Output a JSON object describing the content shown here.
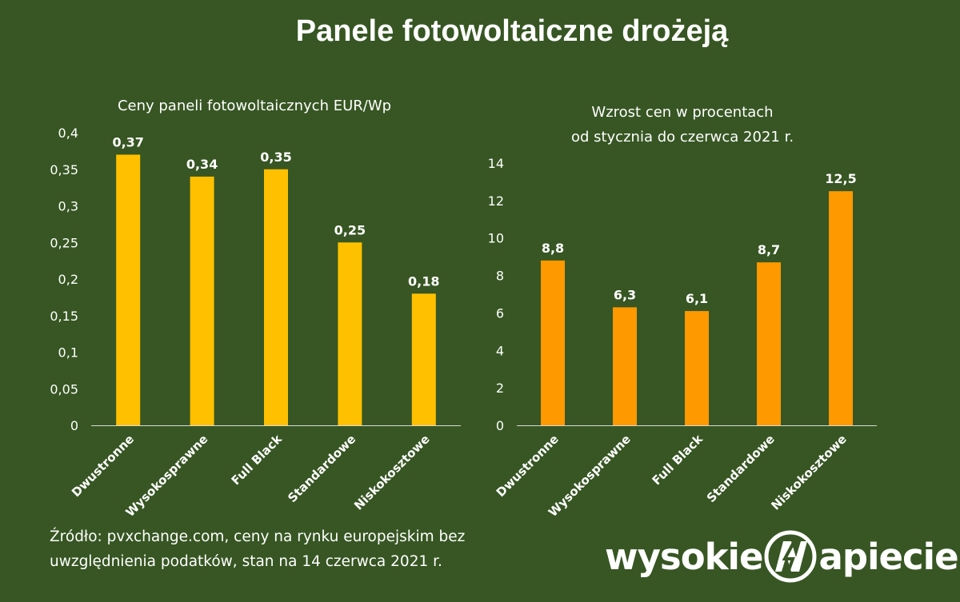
{
  "page": {
    "title": "Panele fotowoltaiczne drożeją",
    "source": "Źródło: pvxchange.com, ceny na rynku europejskim bez uwzględnienia podatków, stan na 14 czerwca 2021 r.",
    "logo": {
      "left": "wysokie",
      "right": "apiecie.pl",
      "icon": "lightning-n-icon"
    }
  },
  "colors": {
    "background": "#375623",
    "bar_left": "#FFC000",
    "bar_right": "#FF9900",
    "text": "#FFFFFF"
  },
  "chart_data": [
    {
      "type": "bar",
      "title": "Ceny paneli fotowoltaicznych EUR/Wp",
      "categories": [
        "Dwustronne",
        "Wysokosprawne",
        "Full Black",
        "Standardowe",
        "Niskokosztowe"
      ],
      "values": [
        0.37,
        0.34,
        0.35,
        0.25,
        0.18
      ],
      "value_labels": [
        "0,37",
        "0,34",
        "0,35",
        "0,25",
        "0,18"
      ],
      "ylim": [
        0,
        0.4
      ],
      "yticks": [
        0,
        0.05,
        0.1,
        0.15,
        0.2,
        0.25,
        0.3,
        0.35,
        0.4
      ],
      "ytick_labels": [
        "0",
        "0,05",
        "0,1",
        "0,15",
        "0,2",
        "0,25",
        "0,3",
        "0,35",
        "0,4"
      ],
      "grid": false,
      "legend": "none"
    },
    {
      "type": "bar",
      "title": "Wzrost cen w procentach od stycznia do czerwca 2021 r.",
      "title_lines": [
        "Wzrost cen w procentach",
        "od stycznia do czerwca 2021 r."
      ],
      "categories": [
        "Dwustronne",
        "Wysokosprawne",
        "Full Black",
        "Standardowe",
        "Niskokosztowe"
      ],
      "values": [
        8.8,
        6.3,
        6.1,
        8.7,
        12.5
      ],
      "value_labels": [
        "8,8",
        "6,3",
        "6,1",
        "8,7",
        "12,5"
      ],
      "ylim": [
        0,
        14
      ],
      "yticks": [
        0,
        2,
        4,
        6,
        8,
        10,
        12,
        14
      ],
      "ytick_labels": [
        "0",
        "2",
        "4",
        "6",
        "8",
        "10",
        "12",
        "14"
      ],
      "grid": false,
      "legend": "none"
    }
  ]
}
